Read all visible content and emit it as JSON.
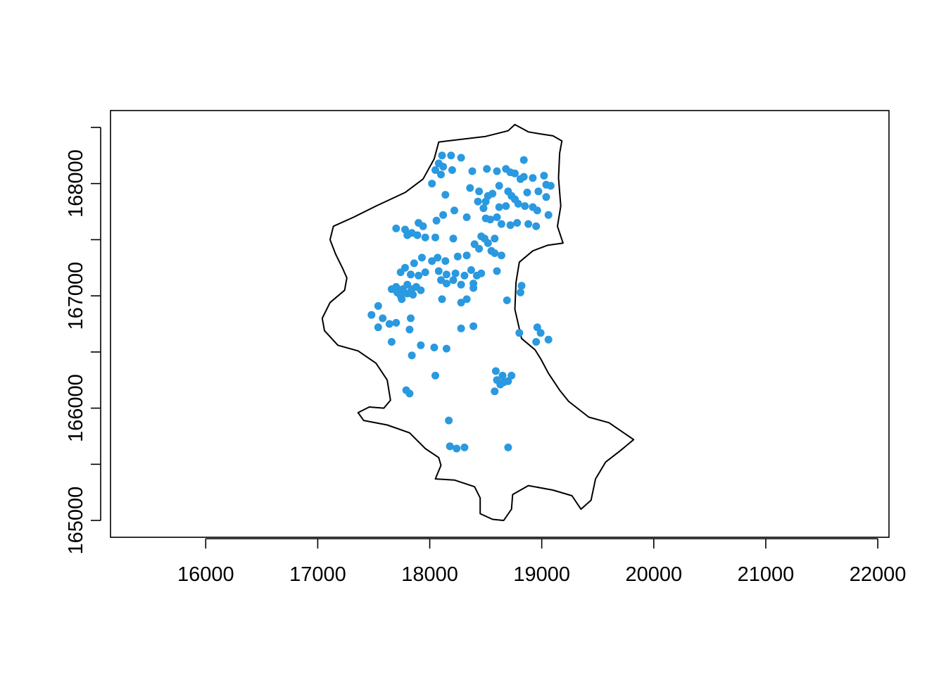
{
  "chart_data": {
    "type": "scatter",
    "title": "",
    "xlabel": "",
    "ylabel": "",
    "xlim": [
      15150,
      22100
    ],
    "ylim": [
      164850,
      168650
    ],
    "x_ticks": [
      16000,
      17000,
      18000,
      19000,
      20000,
      21000,
      22000
    ],
    "x_tick_labels": [
      "16000",
      "17000",
      "18000",
      "19000",
      "20000",
      "21000",
      "22000"
    ],
    "y_ticks": [
      165000,
      165500,
      166000,
      166500,
      167000,
      167500,
      168000,
      168500
    ],
    "y_tick_labels": [
      "165000",
      "",
      "166000",
      "",
      "167000",
      "",
      "168000",
      ""
    ],
    "grid": false,
    "legend": "none",
    "colors": {
      "points": "#2a99e0",
      "boundary": "#000000",
      "frame": "#000000",
      "background": "#ffffff"
    },
    "boundary": [
      [
        18080,
        168370
      ],
      [
        18500,
        168420
      ],
      [
        18700,
        168470
      ],
      [
        18760,
        168525
      ],
      [
        18880,
        168460
      ],
      [
        19000,
        168440
      ],
      [
        19100,
        168425
      ],
      [
        19180,
        168380
      ],
      [
        19160,
        168270
      ],
      [
        19150,
        168050
      ],
      [
        19170,
        167800
      ],
      [
        19140,
        167620
      ],
      [
        19190,
        167470
      ],
      [
        19050,
        167450
      ],
      [
        18920,
        167400
      ],
      [
        18800,
        167300
      ],
      [
        18770,
        167120
      ],
      [
        18760,
        166880
      ],
      [
        18820,
        166620
      ],
      [
        18940,
        166520
      ],
      [
        18990,
        166440
      ],
      [
        19060,
        166310
      ],
      [
        19160,
        166160
      ],
      [
        19240,
        166060
      ],
      [
        19420,
        165920
      ],
      [
        19600,
        165870
      ],
      [
        19820,
        165720
      ],
      [
        19700,
        165620
      ],
      [
        19570,
        165520
      ],
      [
        19480,
        165370
      ],
      [
        19440,
        165180
      ],
      [
        19350,
        165100
      ],
      [
        19270,
        165220
      ],
      [
        19100,
        165270
      ],
      [
        18880,
        165310
      ],
      [
        18740,
        165230
      ],
      [
        18730,
        165100
      ],
      [
        18660,
        165000
      ],
      [
        18560,
        165010
      ],
      [
        18450,
        165060
      ],
      [
        18450,
        165200
      ],
      [
        18400,
        165300
      ],
      [
        18220,
        165360
      ],
      [
        18050,
        165370
      ],
      [
        18100,
        165490
      ],
      [
        18080,
        165560
      ],
      [
        17960,
        165640
      ],
      [
        17820,
        165780
      ],
      [
        17620,
        165850
      ],
      [
        17410,
        165890
      ],
      [
        17360,
        165960
      ],
      [
        17460,
        166010
      ],
      [
        17590,
        166000
      ],
      [
        17650,
        166070
      ],
      [
        17620,
        166250
      ],
      [
        17520,
        166400
      ],
      [
        17360,
        166510
      ],
      [
        17180,
        166560
      ],
      [
        17060,
        166690
      ],
      [
        17040,
        166800
      ],
      [
        17110,
        166940
      ],
      [
        17240,
        167050
      ],
      [
        17260,
        167160
      ],
      [
        17220,
        167250
      ],
      [
        17160,
        167370
      ],
      [
        17110,
        167500
      ],
      [
        17140,
        167620
      ],
      [
        17320,
        167700
      ],
      [
        17520,
        167800
      ],
      [
        17780,
        167920
      ],
      [
        17940,
        168040
      ],
      [
        18040,
        168220
      ],
      [
        18080,
        168370
      ]
    ],
    "points": [
      [
        18110,
        168250
      ],
      [
        18190,
        168250
      ],
      [
        18280,
        168230
      ],
      [
        18080,
        168180
      ],
      [
        18120,
        168150
      ],
      [
        18050,
        168120
      ],
      [
        18100,
        168080
      ],
      [
        18200,
        168120
      ],
      [
        18380,
        168110
      ],
      [
        18510,
        168130
      ],
      [
        18600,
        168110
      ],
      [
        18680,
        168130
      ],
      [
        18720,
        168100
      ],
      [
        18760,
        168090
      ],
      [
        18840,
        168210
      ],
      [
        18840,
        168060
      ],
      [
        18920,
        168050
      ],
      [
        19020,
        168070
      ],
      [
        19040,
        167990
      ],
      [
        19080,
        167980
      ],
      [
        18020,
        168000
      ],
      [
        18360,
        167960
      ],
      [
        18440,
        167930
      ],
      [
        18520,
        167890
      ],
      [
        18560,
        167910
      ],
      [
        18620,
        167980
      ],
      [
        18700,
        167930
      ],
      [
        18730,
        167890
      ],
      [
        18760,
        167860
      ],
      [
        18810,
        168040
      ],
      [
        18870,
        167920
      ],
      [
        18970,
        167930
      ],
      [
        19040,
        167880
      ],
      [
        18140,
        167900
      ],
      [
        18430,
        167840
      ],
      [
        18500,
        167840
      ],
      [
        18480,
        167780
      ],
      [
        18620,
        167790
      ],
      [
        18680,
        167800
      ],
      [
        18790,
        167820
      ],
      [
        18850,
        167800
      ],
      [
        18920,
        167790
      ],
      [
        18960,
        167760
      ],
      [
        18220,
        167760
      ],
      [
        18120,
        167720
      ],
      [
        18330,
        167700
      ],
      [
        18500,
        167690
      ],
      [
        18540,
        167680
      ],
      [
        18600,
        167700
      ],
      [
        18640,
        167640
      ],
      [
        18720,
        167630
      ],
      [
        18780,
        167650
      ],
      [
        18880,
        167640
      ],
      [
        18950,
        167620
      ],
      [
        19060,
        167720
      ],
      [
        18060,
        167670
      ],
      [
        17900,
        167650
      ],
      [
        17940,
        167620
      ],
      [
        17700,
        167600
      ],
      [
        17780,
        167590
      ],
      [
        17840,
        167560
      ],
      [
        17890,
        167540
      ],
      [
        17800,
        167540
      ],
      [
        17960,
        167520
      ],
      [
        18050,
        167520
      ],
      [
        18210,
        167510
      ],
      [
        18460,
        167530
      ],
      [
        18490,
        167510
      ],
      [
        18580,
        167510
      ],
      [
        18520,
        167470
      ],
      [
        18400,
        167460
      ],
      [
        18440,
        167420
      ],
      [
        18550,
        167400
      ],
      [
        18640,
        167360
      ],
      [
        18580,
        167380
      ],
      [
        18330,
        167360
      ],
      [
        18250,
        167350
      ],
      [
        18140,
        167310
      ],
      [
        18070,
        167340
      ],
      [
        18020,
        167310
      ],
      [
        17930,
        167340
      ],
      [
        17860,
        167290
      ],
      [
        17780,
        167250
      ],
      [
        17740,
        167210
      ],
      [
        17830,
        167190
      ],
      [
        17900,
        167180
      ],
      [
        17960,
        167210
      ],
      [
        18080,
        167220
      ],
      [
        18150,
        167190
      ],
      [
        18230,
        167200
      ],
      [
        18310,
        167180
      ],
      [
        18370,
        167230
      ],
      [
        18420,
        167180
      ],
      [
        18460,
        167200
      ],
      [
        18600,
        167220
      ],
      [
        18100,
        167140
      ],
      [
        18150,
        167110
      ],
      [
        18210,
        167140
      ],
      [
        18280,
        167100
      ],
      [
        18390,
        167110
      ],
      [
        18390,
        167070
      ],
      [
        17660,
        167060
      ],
      [
        17700,
        167080
      ],
      [
        17760,
        167060
      ],
      [
        17800,
        167100
      ],
      [
        17840,
        167060
      ],
      [
        17880,
        167080
      ],
      [
        17920,
        167050
      ],
      [
        17740,
        167000
      ],
      [
        17800,
        167020
      ],
      [
        17850,
        167010
      ],
      [
        17710,
        167030
      ],
      [
        17750,
        166970
      ],
      [
        18110,
        166970
      ],
      [
        18330,
        166970
      ],
      [
        18280,
        166940
      ],
      [
        18690,
        166960
      ],
      [
        18820,
        167090
      ],
      [
        18810,
        167030
      ],
      [
        17480,
        166830
      ],
      [
        17540,
        166910
      ],
      [
        17580,
        166800
      ],
      [
        17640,
        166750
      ],
      [
        17700,
        166760
      ],
      [
        17540,
        166720
      ],
      [
        17820,
        166700
      ],
      [
        18280,
        166710
      ],
      [
        18390,
        166730
      ],
      [
        18800,
        166670
      ],
      [
        18960,
        166720
      ],
      [
        18990,
        166670
      ],
      [
        19060,
        166610
      ],
      [
        18950,
        166590
      ],
      [
        17830,
        166800
      ],
      [
        17660,
        166590
      ],
      [
        17920,
        166560
      ],
      [
        18040,
        166540
      ],
      [
        18150,
        166530
      ],
      [
        17840,
        166470
      ],
      [
        18050,
        166290
      ],
      [
        18590,
        166330
      ],
      [
        18650,
        166290
      ],
      [
        18600,
        166250
      ],
      [
        18660,
        166230
      ],
      [
        18700,
        166240
      ],
      [
        18730,
        166290
      ],
      [
        18630,
        166210
      ],
      [
        18580,
        166150
      ],
      [
        17790,
        166160
      ],
      [
        17820,
        166130
      ],
      [
        18170,
        165890
      ],
      [
        18180,
        165660
      ],
      [
        18240,
        165640
      ],
      [
        18310,
        165650
      ],
      [
        18700,
        165650
      ]
    ]
  }
}
